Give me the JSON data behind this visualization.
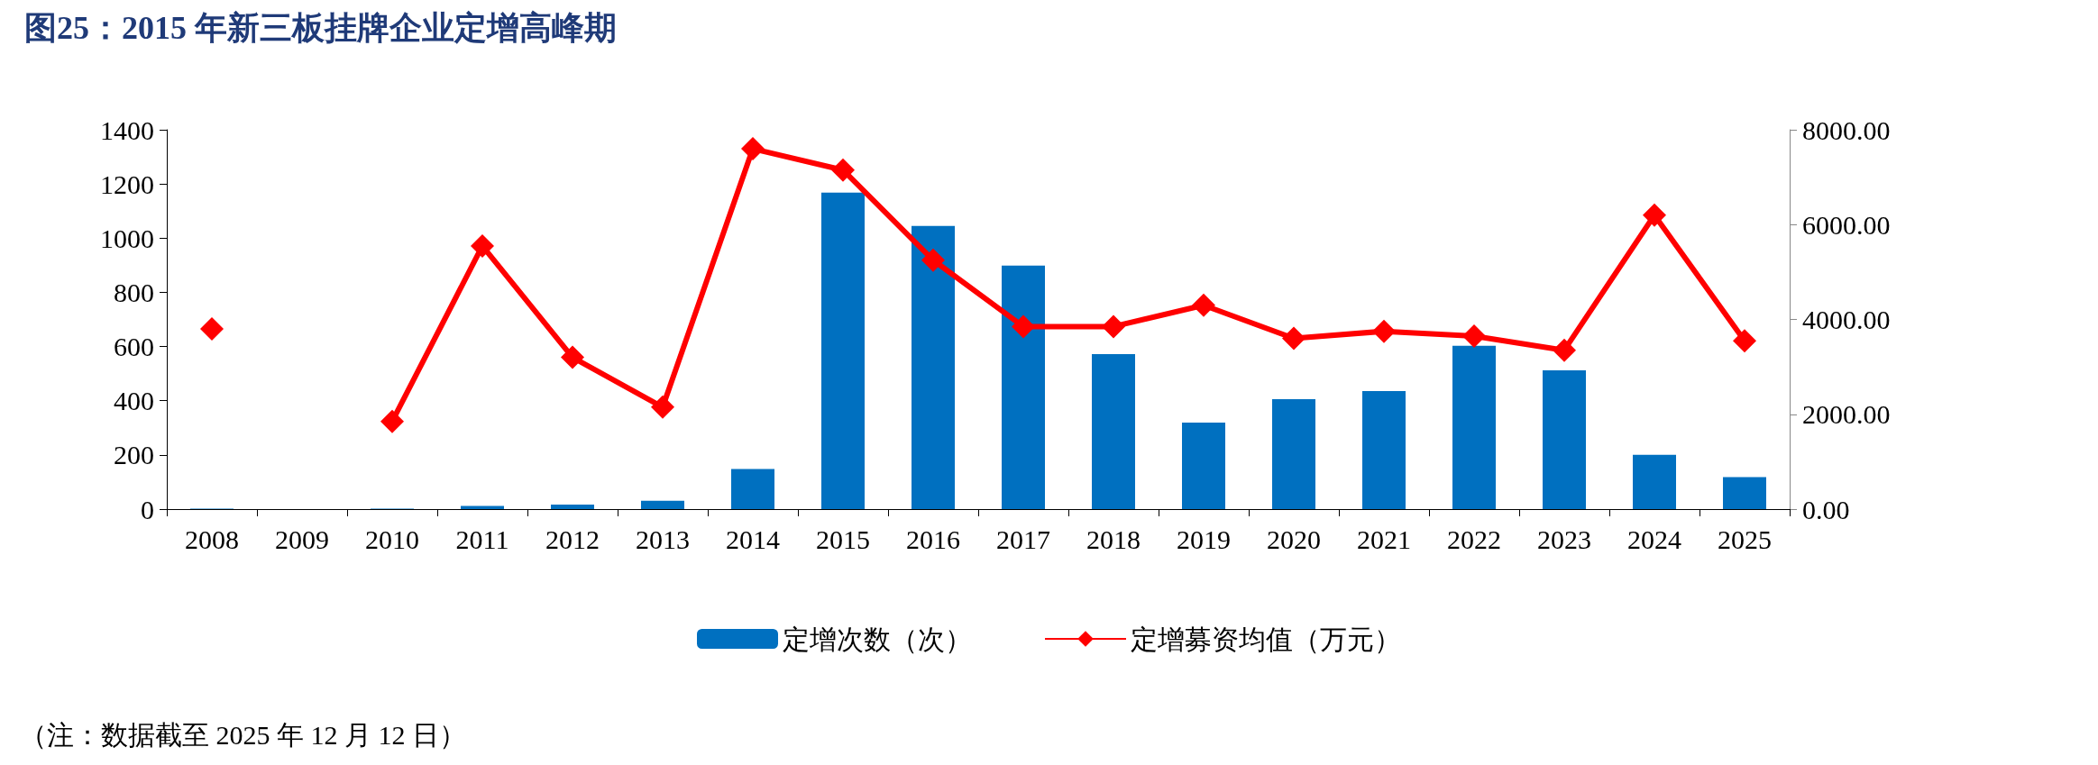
{
  "chart_data": {
    "type": "bar",
    "title": "图25：2015 年新三板挂牌企业定增高峰期",
    "annotations": [
      "（注：数据截至 2025 年 12 月 12 日）"
    ],
    "categories": [
      "2008",
      "2009",
      "2010",
      "2011",
      "2012",
      "2013",
      "2014",
      "2015",
      "2016",
      "2017",
      "2018",
      "2019",
      "2020",
      "2021",
      "2022",
      "2023",
      "2024",
      "2025"
    ],
    "series": [
      {
        "name": "定增次数（次）",
        "color": "#0070c0",
        "values": [
          2,
          null,
          2,
          12,
          17,
          31,
          148,
          1168,
          1045,
          899,
          572,
          319,
          406,
          436,
          603,
          512,
          200,
          118
        ]
      },
      {
        "name": "定增募资均值（万元）",
        "type": "line",
        "axis": "y2",
        "color": "#ff0000",
        "marker": "diamond",
        "line_style": "solid",
        "values": [
          3800,
          null,
          1850,
          5550,
          3200,
          2150,
          7600,
          7150,
          5250,
          3850,
          3850,
          4300,
          3600,
          3750,
          3650,
          3350,
          6200,
          3550
        ]
      }
    ],
    "ylim": [
      0,
      1400
    ],
    "yticks": [
      0,
      200,
      400,
      600,
      800,
      1000,
      1200,
      1400
    ],
    "y2lim": [
      0,
      8000
    ],
    "y2ticks": [
      {
        "value": 0,
        "label": "0.00"
      },
      {
        "value": 2000,
        "label": "2000.00"
      },
      {
        "value": 4000,
        "label": "4000.00"
      },
      {
        "value": 6000,
        "label": "6000.00"
      },
      {
        "value": 8000,
        "label": "8000.00"
      }
    ],
    "grid": false,
    "legend": "bottom"
  }
}
